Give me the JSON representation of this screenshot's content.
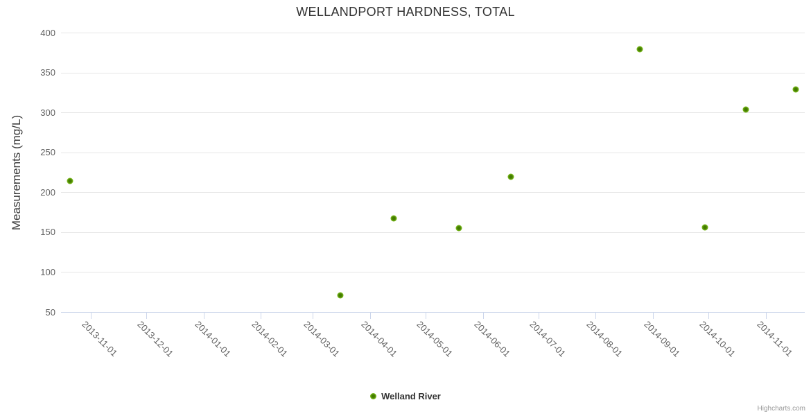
{
  "chart_data": {
    "type": "scatter",
    "title": "WELLANDPORT HARDNESS, TOTAL",
    "xlabel": "",
    "ylabel": "Measurements (mg/L)",
    "ylim": [
      50,
      400
    ],
    "yticks": [
      400,
      350,
      300,
      250,
      200,
      150,
      100,
      50
    ],
    "xlim": [
      "2013-10-16",
      "2014-11-22"
    ],
    "xticks": [
      "2013-11-01",
      "2013-12-01",
      "2014-01-01",
      "2014-02-01",
      "2014-03-01",
      "2014-04-01",
      "2014-05-01",
      "2014-06-01",
      "2014-07-01",
      "2014-08-01",
      "2014-09-01",
      "2014-10-01",
      "2014-11-01"
    ],
    "grid": "horizontal",
    "legend_position": "bottom-center",
    "series": [
      {
        "name": "Welland River",
        "points": [
          {
            "x": "2013-10-21",
            "y": 214
          },
          {
            "x": "2014-03-16",
            "y": 71
          },
          {
            "x": "2014-04-14",
            "y": 167
          },
          {
            "x": "2014-05-19",
            "y": 155
          },
          {
            "x": "2014-06-16",
            "y": 219
          },
          {
            "x": "2014-08-25",
            "y": 379
          },
          {
            "x": "2014-09-29",
            "y": 156
          },
          {
            "x": "2014-10-21",
            "y": 304
          },
          {
            "x": "2014-11-17",
            "y": 329
          }
        ]
      }
    ]
  },
  "legend": {
    "items": [
      {
        "label": "Welland River"
      }
    ]
  },
  "credits": {
    "label": "Highcharts.com"
  },
  "colors": {
    "series": "#74B417",
    "series_center": "#447C00",
    "grid": "#e6e6e6",
    "axis": "#ccd6eb",
    "tick_label": "#606060",
    "title": "#333333",
    "credits": "#999999"
  }
}
